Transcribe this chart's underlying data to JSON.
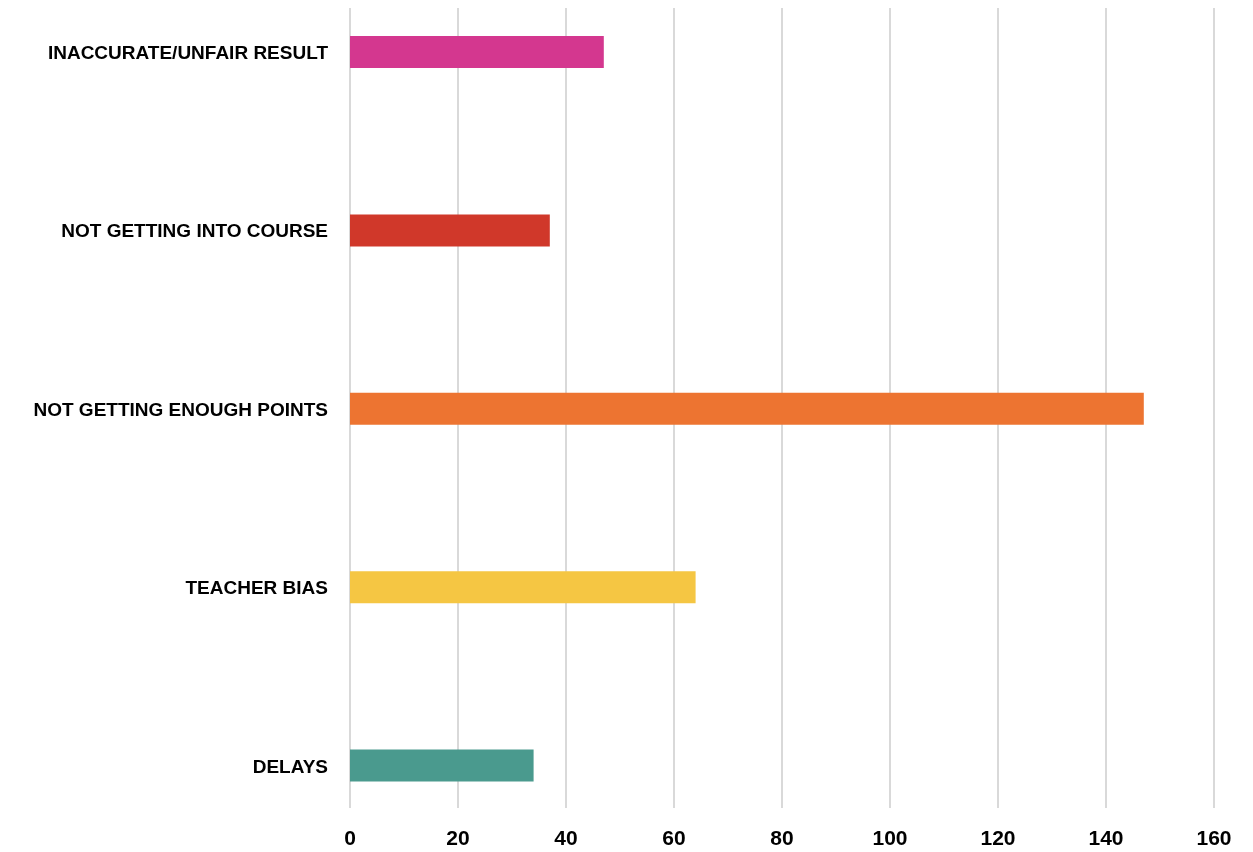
{
  "chart_data": {
    "type": "bar",
    "orientation": "horizontal",
    "categories": [
      "INACCURATE/UNFAIR RESULT",
      "NOT GETTING INTO COURSE",
      "NOT GETTING ENOUGH POINTS",
      "TEACHER BIAS",
      "DELAYS"
    ],
    "values": [
      47,
      37,
      147,
      64,
      34
    ],
    "colors": [
      "#d4378f",
      "#d0382a",
      "#ed7431",
      "#f5c643",
      "#4a9a8e"
    ],
    "xlim": [
      0,
      160
    ],
    "xticks": [
      0,
      20,
      40,
      60,
      80,
      100,
      120,
      140,
      160
    ],
    "grid": "x"
  }
}
